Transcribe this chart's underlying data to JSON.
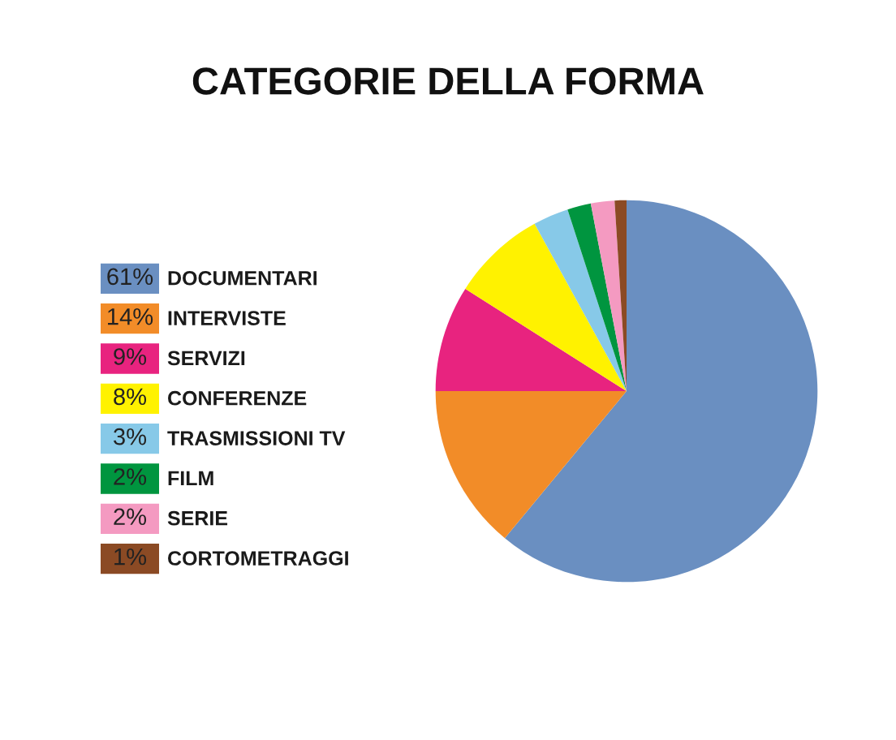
{
  "chart_data": {
    "type": "pie",
    "title": "CATEGORIE DELLA FORMA",
    "categories": [
      "DOCUMENTARI",
      "INTERVISTE",
      "SERVIZI",
      "CONFERENZE",
      "TRASMISSIONI TV",
      "FILM",
      "SERIE",
      "CORTOMETRAGGI"
    ],
    "values": [
      61,
      14,
      9,
      8,
      3,
      2,
      2,
      1
    ],
    "colors": [
      "#6a8fc1",
      "#f28c28",
      "#e8237f",
      "#fff200",
      "#87c9e8",
      "#00953f",
      "#f49ac1",
      "#8b4a24"
    ],
    "value_labels": [
      "61%",
      "14%",
      "9%",
      "8%",
      "3%",
      "2%",
      "2%",
      "1%"
    ],
    "legend": "left"
  }
}
